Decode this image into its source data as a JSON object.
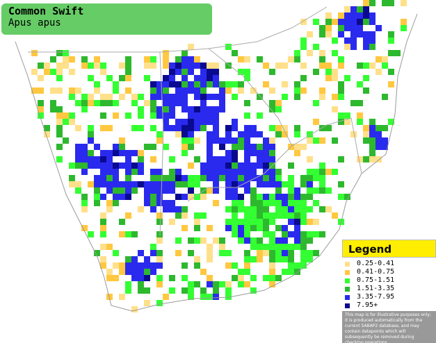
{
  "header": {
    "title": "Common Swift",
    "subtitle": "Apus apus"
  },
  "legend": {
    "title": "Legend",
    "items": [
      {
        "label": "0.25-0.41",
        "color": "#ffe08a"
      },
      {
        "label": "0.41-0.75",
        "color": "#ffc840"
      },
      {
        "label": "0.75-1.51",
        "color": "#33ff33"
      },
      {
        "label": "1.51-3.35",
        "color": "#2eb82e"
      },
      {
        "label": "3.35-7.95",
        "color": "#2a2aee"
      },
      {
        "label": "7.95+",
        "color": "#0a0a90"
      }
    ],
    "note": "This map is for illustrative purposes only; it is produced automatically from the current SABAP2 database, and may contain datapoints which will subsequently be removed during checking operations."
  }
}
